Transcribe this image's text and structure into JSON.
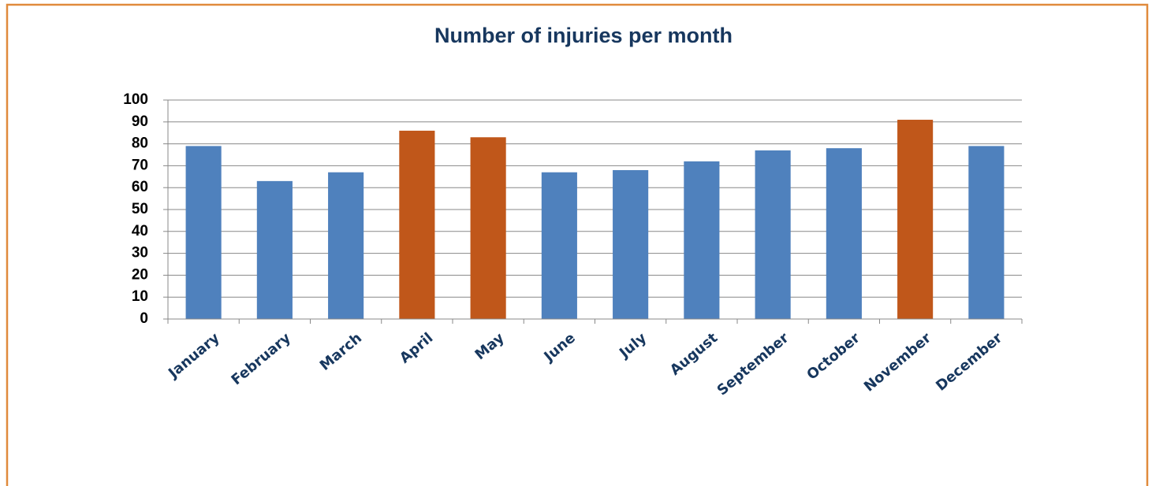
{
  "chart_data": {
    "type": "bar",
    "title": "Number of injuries per month",
    "categories": [
      "January",
      "February",
      "March",
      "April",
      "May",
      "June",
      "July",
      "August",
      "September",
      "October",
      "November",
      "December"
    ],
    "values": [
      79,
      63,
      67,
      86,
      83,
      67,
      68,
      72,
      77,
      78,
      91,
      79
    ],
    "colors": [
      "#4f81bd",
      "#4f81bd",
      "#4f81bd",
      "#c0571a",
      "#c0571a",
      "#4f81bd",
      "#4f81bd",
      "#4f81bd",
      "#4f81bd",
      "#4f81bd",
      "#c0571a",
      "#4f81bd"
    ],
    "ylim": [
      0,
      100
    ],
    "yticks": [
      0,
      10,
      20,
      30,
      40,
      50,
      60,
      70,
      80,
      90,
      100
    ],
    "grid": true
  }
}
